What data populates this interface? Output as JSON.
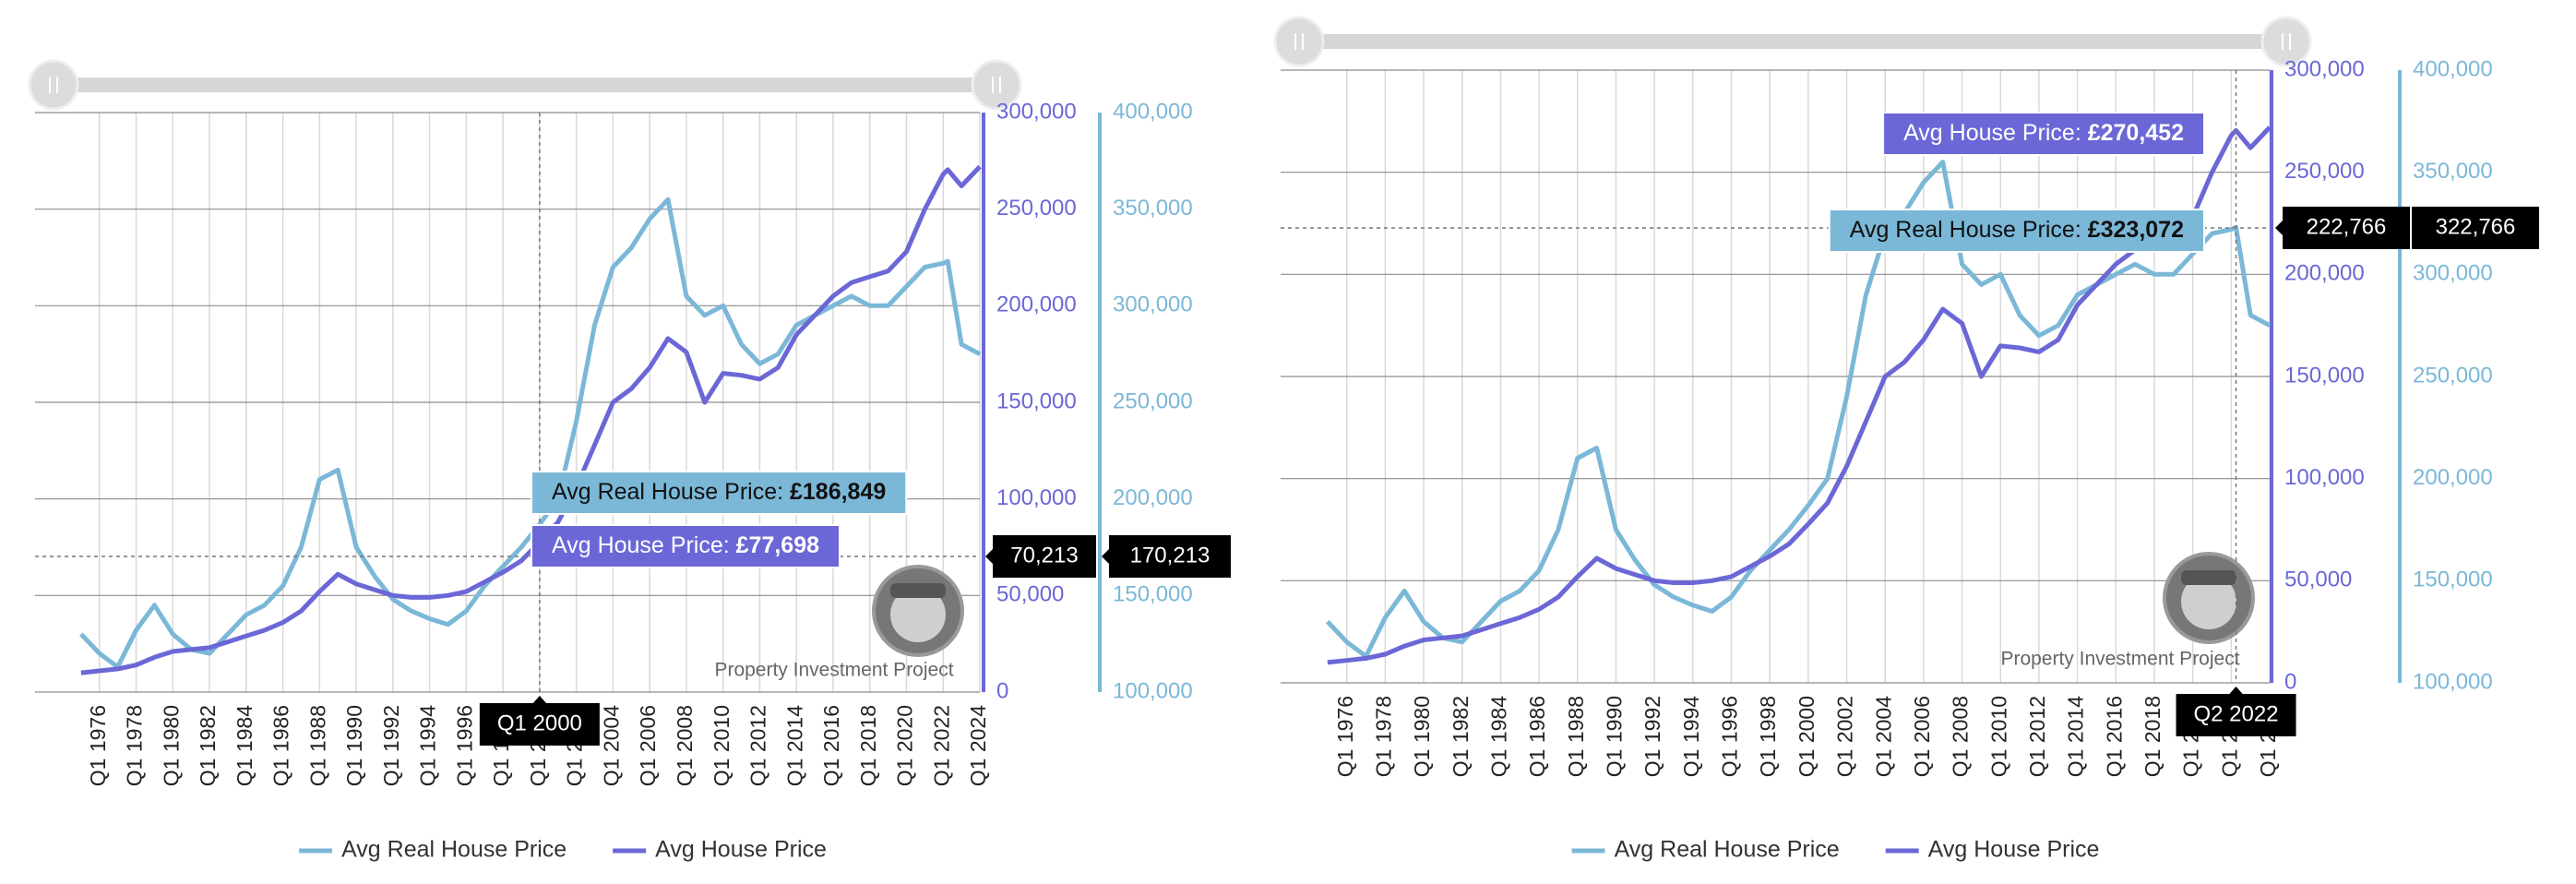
{
  "chart_data": [
    {
      "type": "line",
      "grid": true,
      "legend": "bottom",
      "watermark": "Property Investment Project",
      "x": [
        1975,
        1976,
        1977,
        1978,
        1979,
        1980,
        1981,
        1982,
        1983,
        1984,
        1985,
        1986,
        1987,
        1988,
        1989,
        1990,
        1991,
        1992,
        1993,
        1994,
        1995,
        1996,
        1997,
        1998,
        1999,
        2000,
        2001,
        2002,
        2003,
        2004,
        2005,
        2006,
        2007,
        2008,
        2009,
        2010,
        2011,
        2012,
        2013,
        2014,
        2015,
        2016,
        2017,
        2018,
        2019,
        2020,
        2021,
        2022,
        2022.25,
        2023,
        2024
      ],
      "xlim": [
        1974,
        2024
      ],
      "xticks": [
        {
          "value": 1976,
          "label": "Q1 1976"
        },
        {
          "value": 1978,
          "label": "Q1 1978"
        },
        {
          "value": 1980,
          "label": "Q1 1980"
        },
        {
          "value": 1982,
          "label": "Q1 1982"
        },
        {
          "value": 1984,
          "label": "Q1 1984"
        },
        {
          "value": 1986,
          "label": "Q1 1986"
        },
        {
          "value": 1988,
          "label": "Q1 1988"
        },
        {
          "value": 1990,
          "label": "Q1 1990"
        },
        {
          "value": 1992,
          "label": "Q1 1992"
        },
        {
          "value": 1994,
          "label": "Q1 1994"
        },
        {
          "value": 1996,
          "label": "Q1 1996"
        },
        {
          "value": 1998,
          "label": "Q1 1998"
        },
        {
          "value": 2000,
          "label": "Q1 2000"
        },
        {
          "value": 2002,
          "label": "Q1 2002"
        },
        {
          "value": 2004,
          "label": "Q1 2004"
        },
        {
          "value": 2006,
          "label": "Q1 2006"
        },
        {
          "value": 2008,
          "label": "Q1 2008"
        },
        {
          "value": 2010,
          "label": "Q1 2010"
        },
        {
          "value": 2012,
          "label": "Q1 2012"
        },
        {
          "value": 2014,
          "label": "Q1 2014"
        },
        {
          "value": 2016,
          "label": "Q1 2016"
        },
        {
          "value": 2018,
          "label": "Q1 2018"
        },
        {
          "value": 2020,
          "label": "Q1 2020"
        },
        {
          "value": 2022,
          "label": "Q1 2022"
        },
        {
          "value": 2024,
          "label": "Q1 2024"
        }
      ],
      "ylim": [
        0,
        300000
      ],
      "yticks": [
        0,
        {
          "value": 50000,
          "label": "50,000"
        },
        {
          "value": 100000,
          "label": "100,000"
        },
        {
          "value": 150000,
          "label": "150,000"
        },
        {
          "value": 200000,
          "label": "200,000"
        },
        {
          "value": 250000,
          "label": "250,000"
        },
        {
          "value": 300000,
          "label": "300,000"
        }
      ],
      "y2lim": [
        100000,
        400000
      ],
      "y2ticks": [
        {
          "value": 100000,
          "label": "100,000"
        },
        {
          "value": 150000,
          "label": "150,000"
        },
        {
          "value": 200000,
          "label": "200,000"
        },
        {
          "value": 250000,
          "label": "250,000"
        },
        {
          "value": 300000,
          "label": "300,000"
        },
        {
          "value": 350000,
          "label": "350,000"
        },
        {
          "value": 400000,
          "label": "400,000"
        }
      ],
      "series": [
        {
          "name": "Avg Real House Price",
          "color": "#7bb8d8",
          "axis": "y2",
          "values": [
            130000,
            120000,
            113000,
            132000,
            145000,
            130000,
            122000,
            120000,
            130000,
            140000,
            145000,
            155000,
            175000,
            210000,
            215000,
            175000,
            160000,
            148000,
            142000,
            138000,
            135000,
            142000,
            155000,
            165000,
            175000,
            186849,
            200000,
            240000,
            290000,
            320000,
            330000,
            345000,
            355000,
            305000,
            295000,
            300000,
            280000,
            270000,
            275000,
            290000,
            295000,
            300000,
            305000,
            300000,
            300000,
            310000,
            320000,
            322000,
            323072,
            280000,
            275000
          ]
        },
        {
          "name": "Avg House Price",
          "color": "#6b67d6",
          "values": [
            10000,
            11000,
            12000,
            14000,
            18000,
            21000,
            22000,
            23000,
            26000,
            29000,
            32000,
            36000,
            42000,
            52000,
            61000,
            56000,
            53000,
            50000,
            49000,
            49000,
            50000,
            52000,
            57000,
            62000,
            68000,
            77698,
            88000,
            106000,
            128000,
            150000,
            157000,
            168000,
            183000,
            176000,
            150000,
            165000,
            164000,
            162000,
            168000,
            185000,
            195000,
            205000,
            212000,
            215000,
            218000,
            228000,
            250000,
            268000,
            270452,
            262000,
            272000
          ]
        }
      ],
      "crosshair": {
        "x": {
          "value": 2000,
          "label": "Q1 2000"
        },
        "y": {
          "value": 70213,
          "label": "70,213"
        },
        "y2": {
          "value": 170213,
          "label": "170,213"
        }
      },
      "tooltip": [
        {
          "label": "Avg Real House Price: ",
          "value": "£186,849",
          "color": "#7bb8d8"
        },
        {
          "label": "Avg House Price: ",
          "value": "£77,698",
          "color": "#6b67d6"
        }
      ]
    },
    {
      "type": "line",
      "grid": true,
      "legend": "bottom",
      "watermark": "Property Investment Project",
      "x": [
        1975,
        1976,
        1977,
        1978,
        1979,
        1980,
        1981,
        1982,
        1983,
        1984,
        1985,
        1986,
        1987,
        1988,
        1989,
        1990,
        1991,
        1992,
        1993,
        1994,
        1995,
        1996,
        1997,
        1998,
        1999,
        2000,
        2001,
        2002,
        2003,
        2004,
        2005,
        2006,
        2007,
        2008,
        2009,
        2010,
        2011,
        2012,
        2013,
        2014,
        2015,
        2016,
        2017,
        2018,
        2019,
        2020,
        2021,
        2022,
        2022.25,
        2023,
        2024
      ],
      "xlim": [
        1974,
        2024
      ],
      "xticks": [
        {
          "value": 1976,
          "label": "Q1 1976"
        },
        {
          "value": 1978,
          "label": "Q1 1978"
        },
        {
          "value": 1980,
          "label": "Q1 1980"
        },
        {
          "value": 1982,
          "label": "Q1 1982"
        },
        {
          "value": 1984,
          "label": "Q1 1984"
        },
        {
          "value": 1986,
          "label": "Q1 1986"
        },
        {
          "value": 1988,
          "label": "Q1 1988"
        },
        {
          "value": 1990,
          "label": "Q1 1990"
        },
        {
          "value": 1992,
          "label": "Q1 1992"
        },
        {
          "value": 1994,
          "label": "Q1 1994"
        },
        {
          "value": 1996,
          "label": "Q1 1996"
        },
        {
          "value": 1998,
          "label": "Q1 1998"
        },
        {
          "value": 2000,
          "label": "Q1 2000"
        },
        {
          "value": 2002,
          "label": "Q1 2002"
        },
        {
          "value": 2004,
          "label": "Q1 2004"
        },
        {
          "value": 2006,
          "label": "Q1 2006"
        },
        {
          "value": 2008,
          "label": "Q1 2008"
        },
        {
          "value": 2010,
          "label": "Q1 2010"
        },
        {
          "value": 2012,
          "label": "Q1 2012"
        },
        {
          "value": 2014,
          "label": "Q1 2014"
        },
        {
          "value": 2016,
          "label": "Q1 2016"
        },
        {
          "value": 2018,
          "label": "Q1 2018"
        },
        {
          "value": 2020,
          "label": "Q1 2020"
        },
        {
          "value": 2022,
          "label": "Q1 2022"
        },
        {
          "value": 2024,
          "label": "Q1 2024"
        }
      ],
      "ylim": [
        0,
        300000
      ],
      "yticks": [
        0,
        {
          "value": 50000,
          "label": "50,000"
        },
        {
          "value": 100000,
          "label": "100,000"
        },
        {
          "value": 150000,
          "label": "150,000"
        },
        {
          "value": 200000,
          "label": "200,000"
        },
        {
          "value": 250000,
          "label": "250,000"
        },
        {
          "value": 300000,
          "label": "300,000"
        }
      ],
      "y2lim": [
        100000,
        400000
      ],
      "y2ticks": [
        {
          "value": 100000,
          "label": "100,000"
        },
        {
          "value": 150000,
          "label": "150,000"
        },
        {
          "value": 200000,
          "label": "200,000"
        },
        {
          "value": 250000,
          "label": "250,000"
        },
        {
          "value": 300000,
          "label": "300,000"
        },
        {
          "value": 350000,
          "label": "350,000"
        },
        {
          "value": 400000,
          "label": "400,000"
        }
      ],
      "series": [
        {
          "name": "Avg Real House Price",
          "color": "#7bb8d8",
          "axis": "y2",
          "values": [
            130000,
            120000,
            113000,
            132000,
            145000,
            130000,
            122000,
            120000,
            130000,
            140000,
            145000,
            155000,
            175000,
            210000,
            215000,
            175000,
            160000,
            148000,
            142000,
            138000,
            135000,
            142000,
            155000,
            165000,
            175000,
            186849,
            200000,
            240000,
            290000,
            320000,
            330000,
            345000,
            355000,
            305000,
            295000,
            300000,
            280000,
            270000,
            275000,
            290000,
            295000,
            300000,
            305000,
            300000,
            300000,
            310000,
            320000,
            322000,
            323072,
            280000,
            275000
          ]
        },
        {
          "name": "Avg House Price",
          "color": "#6b67d6",
          "values": [
            10000,
            11000,
            12000,
            14000,
            18000,
            21000,
            22000,
            23000,
            26000,
            29000,
            32000,
            36000,
            42000,
            52000,
            61000,
            56000,
            53000,
            50000,
            49000,
            49000,
            50000,
            52000,
            57000,
            62000,
            68000,
            77698,
            88000,
            106000,
            128000,
            150000,
            157000,
            168000,
            183000,
            176000,
            150000,
            165000,
            164000,
            162000,
            168000,
            185000,
            195000,
            205000,
            212000,
            215000,
            218000,
            228000,
            250000,
            268000,
            270452,
            262000,
            272000
          ]
        }
      ],
      "crosshair": {
        "x": {
          "value": 2022.25,
          "label": "Q2 2022"
        },
        "y": {
          "value": 222766,
          "label": "222,766"
        },
        "y2": {
          "value": 322766,
          "label": "322,766"
        }
      },
      "tooltip": [
        {
          "label": "Avg House Price: ",
          "value": "£270,452",
          "color": "#6b67d6"
        },
        {
          "label": "Avg Real House Price: ",
          "value": "£323,072",
          "color": "#7bb8d8"
        }
      ]
    }
  ]
}
